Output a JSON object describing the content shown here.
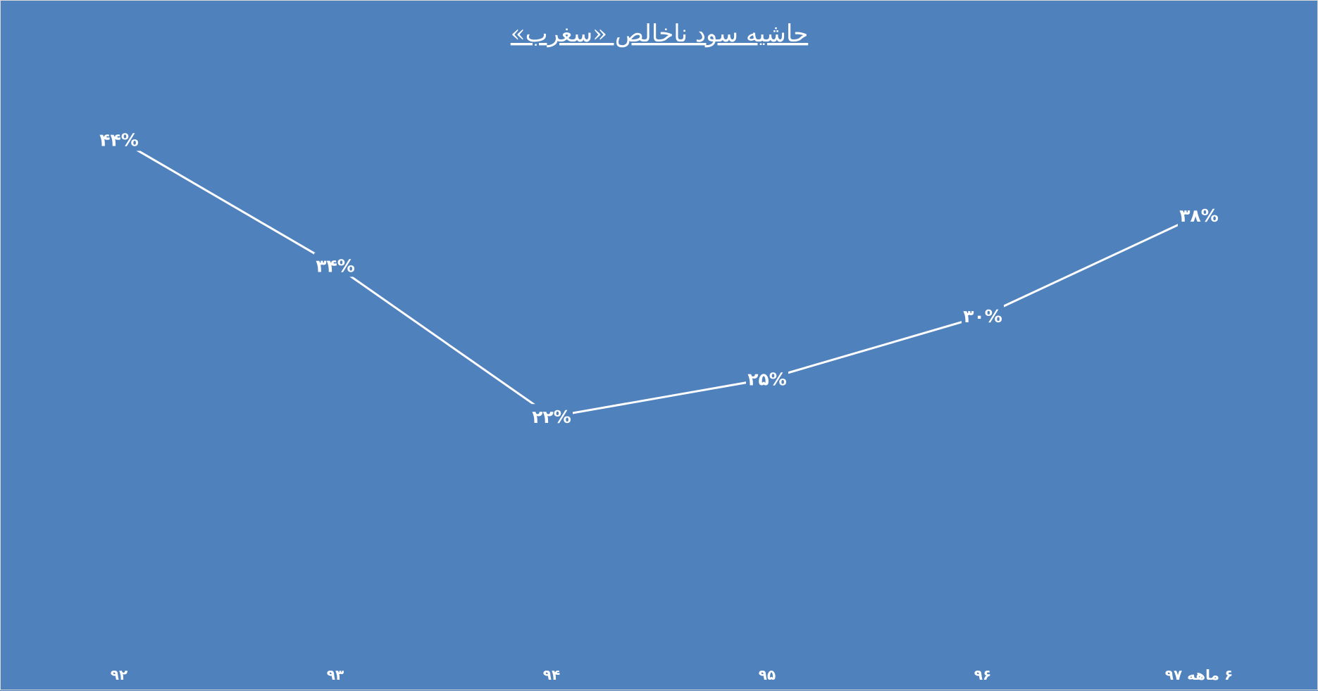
{
  "chart_data": {
    "type": "line",
    "title": "حاشیه سود ناخالص «سغرب»",
    "categories": [
      "۹۲",
      "۹۳",
      "۹۴",
      "۹۵",
      "۹۶",
      "۶ ماهه ۹۷"
    ],
    "values": [
      44,
      34,
      22,
      25,
      30,
      38
    ],
    "data_labels": [
      "۴۴%",
      "۳۴%",
      "۲۲%",
      "۲۵%",
      "۳۰%",
      "۳۸%"
    ],
    "ylim": [
      0,
      50
    ],
    "grid": false,
    "legend": "none",
    "colors": {
      "background": "#4f81bd",
      "line": "#ffffff",
      "drop_lines": "#ffffff"
    }
  }
}
